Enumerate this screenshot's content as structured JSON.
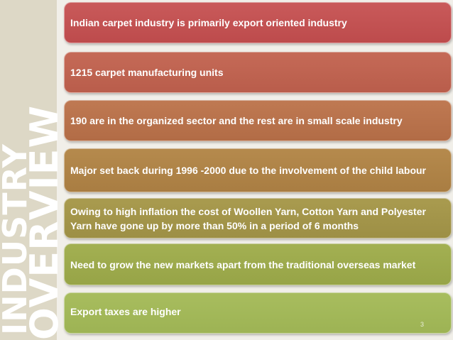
{
  "slide": {
    "vertical_title_line1": "INDUSTRY",
    "vertical_title_line2": "OVERVIEW",
    "bullets": [
      "Indian carpet industry is primarily export oriented industry",
      "1215 carpet manufacturing units",
      "190 are in the organized sector and the rest are in small scale industry",
      "Major set back during 1996 -2000 due to the involvement of the child labour",
      "Owing to high inflation the cost of Woollen Yarn, Cotton Yarn and Polyester Yarn have gone up by more than 50% in a period of 6 months",
      "Need to grow the new markets apart from the traditional overseas market",
      "Export taxes are higher"
    ],
    "slide_number": "3"
  },
  "colors": {
    "background": "#f1efe9",
    "title_band": "#ddd8c6",
    "bar_gradient": [
      "#c0504d",
      "#bb5e4b",
      "#b56e47",
      "#ab8244",
      "#a09447",
      "#99a64c",
      "#a1b758"
    ]
  }
}
